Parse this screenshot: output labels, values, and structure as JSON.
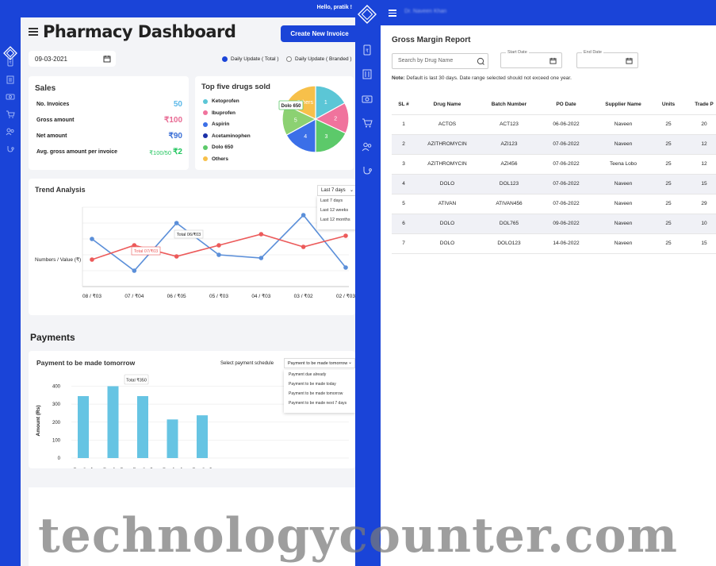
{
  "left_app": {
    "greeting": "Hello, pratik !",
    "title": "Pharmacy Dashboard",
    "create_invoice_label": "Create New Invoice",
    "date_value": "09-03-2021",
    "radio_total": "Daily Update ( Total )",
    "radio_branded": "Daily Update ( Branded )",
    "sales": {
      "title": "Sales",
      "rows": [
        {
          "label": "No. Invoices",
          "value": "50",
          "color": "#5bb8e8"
        },
        {
          "label": "Gross amount",
          "value": "₹100",
          "color": "#e86a93"
        },
        {
          "label": "Net amount",
          "value": "₹90",
          "color": "#3b6fd6"
        },
        {
          "label": "Avg. gross amount per invoice",
          "value_small": "₹100/50",
          "value": "₹2",
          "color": "#22c55e"
        }
      ]
    },
    "top_five": {
      "title": "Top five drugs sold",
      "legend": [
        {
          "label": "Ketoprofen",
          "color": "#5bc6d6"
        },
        {
          "label": "Ibuprofen",
          "color": "#f0739d"
        },
        {
          "label": "Aspirin",
          "color": "#3b6fe8"
        },
        {
          "label": "Acetaminophen",
          "color": "#1a2fa8"
        },
        {
          "label": "Dolo 650",
          "color": "#5cc96a"
        },
        {
          "label": "Others",
          "color": "#f7c04a"
        }
      ],
      "pie_tooltip": "Dolo 650",
      "pie_others_label": "Others"
    },
    "trend": {
      "title": "Trend Analysis",
      "dropdown_value": "Last 7 days",
      "dropdown_options": [
        "Last 7 days",
        "Last 12 weeks",
        "Last 12 months"
      ],
      "tooltip_total": "Total 06/₹03",
      "tooltip_red": "Total 07/₹03"
    },
    "payments": {
      "heading": "Payments",
      "card_title": "Payment to be made tomorrow",
      "schedule_label": "Select payment schedule",
      "dropdown_value": "Payment to be made tomorrow",
      "dropdown_options": [
        "Payment due already",
        "Payment to be made today",
        "Payment to be made tomorrow",
        "Payment to be made next 7 days"
      ],
      "tooltip": "Total ₹350"
    }
  },
  "chart_data": [
    {
      "type": "pie",
      "title": "Top five drugs sold",
      "categories": [
        "Ketoprofen",
        "Ibuprofen",
        "Aspirin",
        "Acetaminophen",
        "Dolo 650",
        "Others"
      ],
      "slice_labels": [
        "1",
        "2",
        "3",
        "4",
        "5",
        ""
      ],
      "values": [
        17,
        15,
        18,
        17,
        15,
        18
      ],
      "colors": [
        "#5bc6d6",
        "#f0739d",
        "#5cc96a",
        "#3b6fe8",
        "#8cd172",
        "#f7c04a"
      ]
    },
    {
      "type": "line",
      "title": "Trend Analysis",
      "ylabel": "Numbers / Value (₹)",
      "categories": [
        "08 / ₹03",
        "07 / ₹04",
        "06 / ₹05",
        "05 / ₹03",
        "04 / ₹03",
        "03 / ₹02",
        "02 / ₹03"
      ],
      "series": [
        {
          "color": "#5b8fd9",
          "values": [
            6,
            2,
            8,
            4,
            3.6,
            9,
            2.4
          ]
        },
        {
          "color": "#ec5a5a",
          "values": [
            3.4,
            5.2,
            3.8,
            5.2,
            6.6,
            5.0,
            6.4
          ]
        }
      ],
      "ylim": [
        0,
        10
      ]
    },
    {
      "type": "bar",
      "title": "Payment to be made tomorrow",
      "ylabel": "Amount (Rs)",
      "categories": [
        "Supplier 1",
        "Supplier 2",
        "Supplier 3",
        "Supplier 4",
        "Supplier 5"
      ],
      "values": [
        345,
        400,
        345,
        215,
        238
      ],
      "yticks": [
        "0",
        "100",
        "200",
        "300",
        "400"
      ],
      "ylim": [
        0,
        420
      ],
      "color": "#66c4e3"
    }
  ],
  "right_app": {
    "blurred_user": "Dr. Naveen Khan",
    "title": "Gross Margin Report",
    "search_placeholder": "Search by Drug Name",
    "start_date_label": "Start Date",
    "end_date_label": "End Date",
    "note_bold": "Note:",
    "note_text": " Default is last 30 days. Date range selected should not exceed one year.",
    "columns": [
      "SL #",
      "Drug Name",
      "Batch Number",
      "PO Date",
      "Supplier Name",
      "Units",
      "Trade P"
    ],
    "rows": [
      [
        "1",
        "ACTOS",
        "ACT123",
        "06-06-2022",
        "Naveen",
        "25",
        "20"
      ],
      [
        "2",
        "AZITHROMYCIN",
        "AZI123",
        "07-06-2022",
        "Naveen",
        "25",
        "12"
      ],
      [
        "3",
        "AZITHROMYCIN",
        "AZI456",
        "07-06-2022",
        "Teena Lobo",
        "25",
        "12"
      ],
      [
        "4",
        "DOLO",
        "DOL123",
        "07-06-2022",
        "Naveen",
        "25",
        "15"
      ],
      [
        "5",
        "ATIVAN",
        "ATIVAN456",
        "07-06-2022",
        "Naveen",
        "25",
        "29"
      ],
      [
        "6",
        "DOLO",
        "DOL765",
        "09-06-2022",
        "Naveen",
        "25",
        "10"
      ],
      [
        "7",
        "DOLO",
        "DOLO123",
        "14-06-2022",
        "Naveen",
        "25",
        "15"
      ]
    ]
  },
  "watermark": "technologycounter.com"
}
